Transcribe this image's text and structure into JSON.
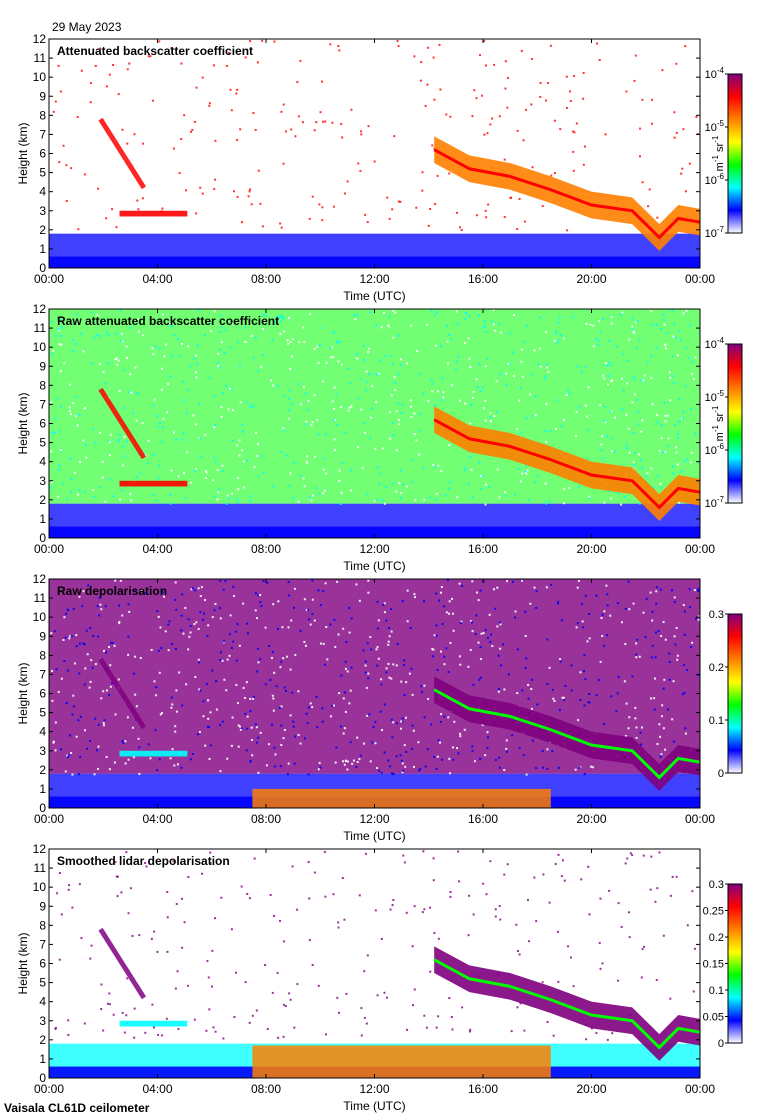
{
  "header": {
    "date": "29 May 2023"
  },
  "footer": {
    "instrument": "Vaisala CL61D ceilometer"
  },
  "colors": {
    "panel_border": "#000000",
    "background": "#ffffff",
    "colormap": [
      "#ffffff",
      "#0000ff",
      "#00ffff",
      "#00ff00",
      "#ffff00",
      "#ff8000",
      "#ff0000",
      "#800080"
    ]
  },
  "chart_data": [
    {
      "type": "heatmap",
      "title": "Attenuated backscatter coefficient",
      "xlabel": "Time (UTC)",
      "ylabel": "Height (km)",
      "x_ticks": [
        "00:00",
        "04:00",
        "08:00",
        "12:00",
        "16:00",
        "20:00",
        "00:00"
      ],
      "xlim_hours": [
        0,
        24
      ],
      "y_ticks": [
        0,
        1,
        2,
        3,
        4,
        5,
        6,
        7,
        8,
        9,
        10,
        11,
        12
      ],
      "ylim": [
        0,
        12
      ],
      "colorbar": {
        "scale": "log",
        "range": [
          1e-07,
          0.0001
        ],
        "tick_labels": [
          "10",
          "10",
          "10",
          "10"
        ],
        "tick_exponents": [
          "-7",
          "-6",
          "-5",
          "-4"
        ],
        "unit_prefix": "m",
        "unit_prefix_exp": "-1",
        "unit_suffix": "sr",
        "unit_suffix_exp": "-1"
      }
    },
    {
      "type": "heatmap",
      "title": "Raw attenuated backscatter coefficient",
      "xlabel": "Time (UTC)",
      "ylabel": "Height (km)",
      "x_ticks": [
        "00:00",
        "04:00",
        "08:00",
        "12:00",
        "16:00",
        "20:00",
        "00:00"
      ],
      "xlim_hours": [
        0,
        24
      ],
      "y_ticks": [
        0,
        1,
        2,
        3,
        4,
        5,
        6,
        7,
        8,
        9,
        10,
        11,
        12
      ],
      "ylim": [
        0,
        12
      ],
      "colorbar": {
        "scale": "log",
        "range": [
          1e-07,
          0.0001
        ],
        "tick_labels": [
          "10",
          "10",
          "10",
          "10"
        ],
        "tick_exponents": [
          "-7",
          "-6",
          "-5",
          "-4"
        ],
        "unit_prefix": "m",
        "unit_prefix_exp": "-1",
        "unit_suffix": "sr",
        "unit_suffix_exp": "-1"
      }
    },
    {
      "type": "heatmap",
      "title": "Raw depolarisation",
      "xlabel": "Time (UTC)",
      "ylabel": "Height (km)",
      "x_ticks": [
        "00:00",
        "04:00",
        "08:00",
        "12:00",
        "16:00",
        "20:00",
        "00:00"
      ],
      "xlim_hours": [
        0,
        24
      ],
      "y_ticks": [
        0,
        1,
        2,
        3,
        4,
        5,
        6,
        7,
        8,
        9,
        10,
        11,
        12
      ],
      "ylim": [
        0,
        12
      ],
      "colorbar": {
        "scale": "linear",
        "range": [
          0,
          0.3
        ],
        "tick_labels": [
          "0",
          "0.1",
          "0.2",
          "0.3"
        ]
      }
    },
    {
      "type": "heatmap",
      "title": "Smoothed lidar depolarisation",
      "xlabel": "Time (UTC)",
      "ylabel": "Height (km)",
      "x_ticks": [
        "00:00",
        "04:00",
        "08:00",
        "12:00",
        "16:00",
        "20:00",
        "00:00"
      ],
      "xlim_hours": [
        0,
        24
      ],
      "y_ticks": [
        0,
        1,
        2,
        3,
        4,
        5,
        6,
        7,
        8,
        9,
        10,
        11,
        12
      ],
      "ylim": [
        0,
        12
      ],
      "colorbar": {
        "scale": "linear",
        "range": [
          0,
          0.3
        ],
        "tick_labels": [
          "0",
          "0.05",
          "0.1",
          "0.15",
          "0.2",
          "0.25",
          "0.3"
        ]
      }
    }
  ]
}
